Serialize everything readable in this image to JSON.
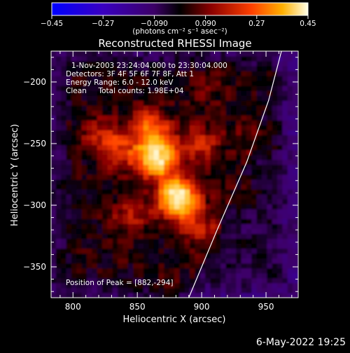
{
  "chart_data": {
    "type": "heatmap",
    "title": "Reconstructed RHESSI Image",
    "xlabel": "Heliocentric X (arcsec)",
    "ylabel": "Heliocentric Y (arcsec)",
    "xlim": [
      783,
      975
    ],
    "ylim": [
      -375,
      -175
    ],
    "x_ticks": [
      800,
      850,
      900,
      950
    ],
    "x_tick_labels": [
      "800",
      "850",
      "900",
      "950"
    ],
    "y_ticks": [
      -200,
      -250,
      -300,
      -350
    ],
    "y_tick_labels": [
      "−200",
      "−250",
      "−300",
      "−350"
    ],
    "colorbar": {
      "range": [
        -0.45,
        0.45
      ],
      "ticks": [
        -0.45,
        -0.27,
        -0.09,
        0.09,
        0.27,
        0.45
      ],
      "tick_labels": [
        "−0.45",
        "−0.27",
        "−0.090",
        "0.090",
        "0.27",
        "0.45"
      ],
      "unit_label": "(photons cm⁻² s⁻¹ asec⁻²)"
    },
    "info_lines": [
      "1-Nov-2003 23:24:04.000 to 23:30:04.000",
      "Detectors: 3F 4F 5F 6F 7F 8F, Att 1",
      "Energy Range: 6.0 - 12.0 keV",
      "Clean     Total counts: 1.98E+04"
    ],
    "peak_label": "Position of Peak = [882,-294]",
    "peak": {
      "x": 882,
      "y": -294,
      "value": 0.45
    },
    "sources": [
      {
        "x": 882,
        "y": -294,
        "value": 0.44
      },
      {
        "x": 866,
        "y": -262,
        "value": 0.38
      },
      {
        "x": 860,
        "y": -238,
        "value": 0.22
      },
      {
        "x": 835,
        "y": -255,
        "value": 0.16
      },
      {
        "x": 900,
        "y": -250,
        "value": 0.14
      },
      {
        "x": 900,
        "y": -320,
        "value": 0.12
      },
      {
        "x": 845,
        "y": -310,
        "value": 0.12
      },
      {
        "x": 820,
        "y": -240,
        "value": 0.1
      },
      {
        "x": 945,
        "y": -245,
        "value": 0.09
      },
      {
        "x": 930,
        "y": -290,
        "value": 0.06
      },
      {
        "x": 905,
        "y": -205,
        "value": 0.06
      },
      {
        "x": 875,
        "y": -365,
        "value": 0.05
      }
    ],
    "limb_curve": [
      {
        "x": 890,
        "y": -375
      },
      {
        "x": 912,
        "y": -320
      },
      {
        "x": 935,
        "y": -265
      },
      {
        "x": 952,
        "y": -215
      },
      {
        "x": 962,
        "y": -175
      }
    ],
    "colors": {
      "min": "#0a0aff",
      "mid": "#000000",
      "max": "#ffffe0",
      "contour": "#ffffff"
    }
  },
  "footer": {
    "date": "6-May-2022 19:25"
  }
}
